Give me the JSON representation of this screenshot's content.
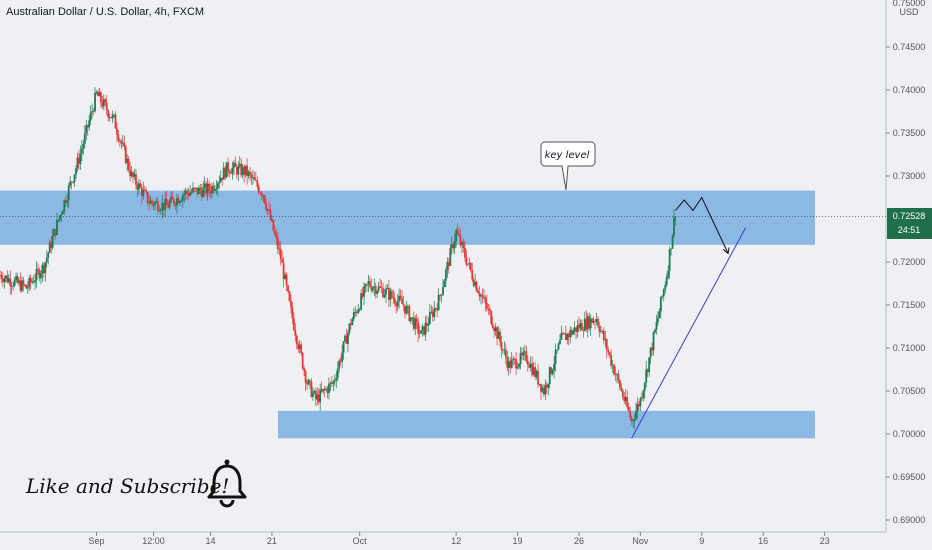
{
  "header": {
    "symbol_title": "Australian Dollar / U.S. Dollar, 4h, FXCM"
  },
  "annotation": {
    "callout": "key level",
    "cta": "Like and Subscribe!",
    "icon": "bell-icon"
  },
  "price_axis": {
    "currency": "USD",
    "top_cut_label": "0.75000",
    "current_price": "0.72528",
    "countdown": "24:51"
  },
  "colors": {
    "up": "#1e7b53",
    "down": "#e53935",
    "zone": "#7aaee0",
    "trendline": "#3a3fc9",
    "background": "#eef0f3",
    "price_tag": "#1f6f4a"
  },
  "chart_data": {
    "type": "candlestick",
    "title": "Australian Dollar / U.S. Dollar, 4h, FXCM",
    "ylabel": "USD",
    "ylim": [
      0.69,
      0.75
    ],
    "y_ticks": [
      0.69,
      0.695,
      0.7,
      0.705,
      0.71,
      0.715,
      0.72,
      0.725,
      0.73,
      0.735,
      0.74,
      0.745
    ],
    "y_tick_labels": [
      "0.69000",
      "0.69500",
      "0.70000",
      "0.70500",
      "0.71000",
      "0.71500",
      "0.72000",
      "",
      "0.73000",
      "0.73500",
      "0.74000",
      "0.74500"
    ],
    "x_ticks": [
      "Sep",
      "12:00",
      "14",
      "21",
      "Oct",
      "12",
      "19",
      "26",
      "Nov",
      "9",
      "16",
      "23"
    ],
    "x_tick_values": [
      "2020-09-01",
      "2020-09-07 12:00",
      "2020-09-14",
      "2020-09-21",
      "2020-10-01",
      "2020-10-12",
      "2020-10-19",
      "2020-10-26",
      "2020-11-02",
      "2020-11-09",
      "2020-11-16",
      "2020-11-23"
    ],
    "series": [
      {
        "values_close_path": [
          [
            "2020-08-21",
            0.7185
          ],
          [
            "2020-08-24",
            0.717
          ],
          [
            "2020-08-26",
            0.7195
          ],
          [
            "2020-08-28",
            0.726
          ],
          [
            "2020-08-30",
            0.732
          ],
          [
            "2020-09-01",
            0.7395
          ],
          [
            "2020-09-03",
            0.7365
          ],
          [
            "2020-09-05",
            0.73
          ],
          [
            "2020-09-07",
            0.727
          ],
          [
            "2020-09-09",
            0.7265
          ],
          [
            "2020-09-11",
            0.728
          ],
          [
            "2020-09-14",
            0.7285
          ],
          [
            "2020-09-16",
            0.731
          ],
          [
            "2020-09-18",
            0.7305
          ],
          [
            "2020-09-20",
            0.728
          ],
          [
            "2020-09-22",
            0.7205
          ],
          [
            "2020-09-23",
            0.715
          ],
          [
            "2020-09-25",
            0.706
          ],
          [
            "2020-09-26",
            0.704
          ],
          [
            "2020-09-28",
            0.706
          ],
          [
            "2020-09-30",
            0.713
          ],
          [
            "2020-10-02",
            0.7175
          ],
          [
            "2020-10-04",
            0.7165
          ],
          [
            "2020-10-06",
            0.715
          ],
          [
            "2020-10-08",
            0.7115
          ],
          [
            "2020-10-10",
            0.7155
          ],
          [
            "2020-10-12",
            0.7235
          ],
          [
            "2020-10-14",
            0.718
          ],
          [
            "2020-10-16",
            0.7135
          ],
          [
            "2020-10-18",
            0.708
          ],
          [
            "2020-10-20",
            0.709
          ],
          [
            "2020-10-22",
            0.705
          ],
          [
            "2020-10-24",
            0.711
          ],
          [
            "2020-10-26",
            0.7125
          ],
          [
            "2020-10-28",
            0.7135
          ],
          [
            "2020-10-30",
            0.7075
          ],
          [
            "2020-11-01",
            0.7015
          ],
          [
            "2020-11-02",
            0.704
          ],
          [
            "2020-11-04",
            0.7135
          ],
          [
            "2020-11-05",
            0.7185
          ],
          [
            "2020-11-06",
            0.726
          ]
        ]
      }
    ],
    "zones": [
      {
        "from": 0.722,
        "to": 0.7283
      },
      {
        "from": 0.6995,
        "to": 0.7027
      }
    ],
    "projection": [
      [
        "2020-11-06",
        0.726
      ],
      [
        "2020-11-07",
        0.7272
      ],
      [
        "2020-11-08",
        0.726
      ],
      [
        "2020-11-09",
        0.7275
      ],
      [
        "2020-11-12",
        0.721
      ]
    ],
    "trendline": [
      [
        "2020-11-01",
        0.6995
      ],
      [
        "2020-11-14",
        0.724
      ]
    ],
    "current_price_line": 0.72528
  }
}
